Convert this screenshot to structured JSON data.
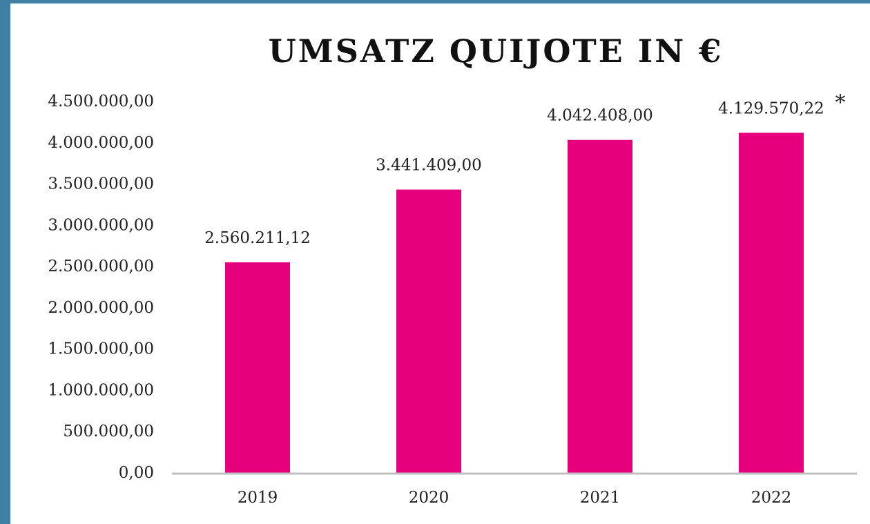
{
  "chart_data": {
    "type": "bar",
    "title": "UMSATZ QUIJOTE IN €",
    "categories": [
      "2019",
      "2020",
      "2021",
      "2022"
    ],
    "values": [
      2560211.12,
      3441409,
      4042408,
      4129570.22
    ],
    "value_labels": [
      "2.560.211,12",
      "3.441.409,00",
      "4.042.408,00",
      "4.129.570,22"
    ],
    "annotation": "*",
    "color": "#e6007e",
    "ylim": [
      0,
      4500000
    ],
    "yticks": [
      {
        "value": 0,
        "label": "0,00"
      },
      {
        "value": 500000,
        "label": "500.000,00"
      },
      {
        "value": 1000000,
        "label": "1.000.000,00"
      },
      {
        "value": 1500000,
        "label": "1.500.000,00"
      },
      {
        "value": 2000000,
        "label": "2.000.000,00"
      },
      {
        "value": 2500000,
        "label": "2.500.000,00"
      },
      {
        "value": 3000000,
        "label": "3.000.000,00"
      },
      {
        "value": 3500000,
        "label": "3.500.000,00"
      },
      {
        "value": 4000000,
        "label": "4.000.000,00"
      },
      {
        "value": 4500000,
        "label": "4.500.000,00"
      }
    ],
    "grid": false
  }
}
